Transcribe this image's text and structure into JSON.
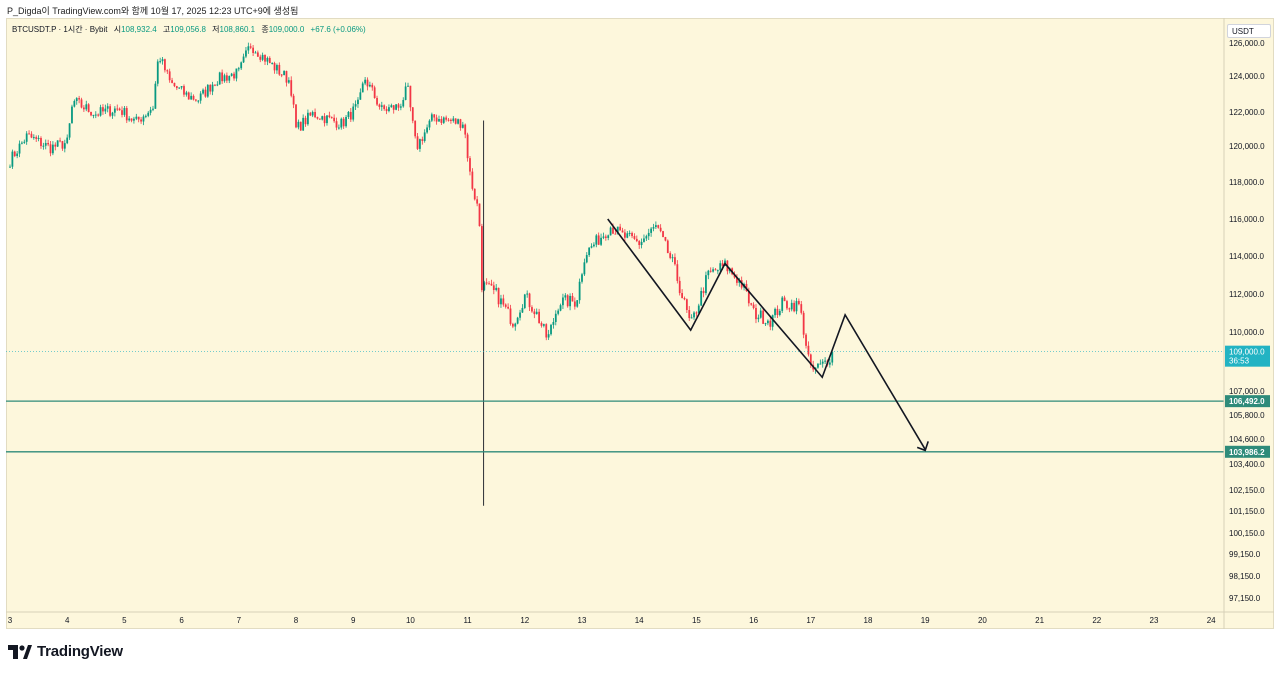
{
  "header": {
    "caption": "P_Digda이 TradingView.com와 함께 10월 17, 2025 12:23 UTC+9에 생성됨"
  },
  "legend": {
    "symbol": "BTCUSDT.P · 1시간 · Bybit",
    "o_label": "시",
    "o": "108,932.4",
    "h_label": "고",
    "h": "109,056.8",
    "l_label": "저",
    "l": "108,860.1",
    "c_label": "종",
    "c": "109,000.0",
    "change": "+67.6 (+0.06%)"
  },
  "brand": {
    "name": "TradingView"
  },
  "colors": {
    "up": "#089981",
    "down": "#f23645",
    "level": "#2e8b7a",
    "price_tag": "#22b3c3",
    "background": "#fdf7dc"
  },
  "chart_data": {
    "type": "candlestick",
    "unit": "USDT",
    "x_ticks": [
      "3",
      "4",
      "5",
      "6",
      "7",
      "8",
      "9",
      "10",
      "11",
      "12",
      "13",
      "14",
      "15",
      "16",
      "17",
      "18",
      "19",
      "20",
      "21",
      "22",
      "23",
      "24"
    ],
    "y_ticks": [
      "126,000.0",
      "124,000.0",
      "122,000.0",
      "120,000.0",
      "118,000.0",
      "116,000.0",
      "114,000.0",
      "112,000.0",
      "110,000.0",
      "107,000.0",
      "105,800.0",
      "104,600.0",
      "103,400.0",
      "102,150.0",
      "101,150.0",
      "100,150.0",
      "99,150.0",
      "98,150.0",
      "97,150.0"
    ],
    "current_price": {
      "value": "109,000.0",
      "countdown": "36:53"
    },
    "levels": [
      {
        "value": 106492.0,
        "label": "106,492.0"
      },
      {
        "value": 103986.2,
        "label": "103,986.2"
      }
    ],
    "path_points": [
      [
        13.45,
        116000
      ],
      [
        14.9,
        110100
      ],
      [
        15.5,
        113600
      ],
      [
        17.2,
        107700
      ],
      [
        17.6,
        110900
      ],
      [
        19.0,
        104100
      ]
    ],
    "ohlc_anchors": [
      [
        3.0,
        119200
      ],
      [
        3.3,
        120600
      ],
      [
        3.7,
        119900
      ],
      [
        4.0,
        120200
      ],
      [
        4.1,
        122600
      ],
      [
        4.5,
        121900
      ],
      [
        4.9,
        122200
      ],
      [
        5.2,
        121400
      ],
      [
        5.5,
        122300
      ],
      [
        5.6,
        125300
      ],
      [
        5.8,
        123600
      ],
      [
        6.1,
        122900
      ],
      [
        6.3,
        122700
      ],
      [
        6.6,
        123800
      ],
      [
        7.0,
        124200
      ],
      [
        7.2,
        125900
      ],
      [
        7.6,
        124600
      ],
      [
        7.9,
        123700
      ],
      [
        8.0,
        121000
      ],
      [
        8.3,
        121900
      ],
      [
        8.8,
        121300
      ],
      [
        9.1,
        122400
      ],
      [
        9.2,
        123900
      ],
      [
        9.5,
        122100
      ],
      [
        9.8,
        122300
      ],
      [
        9.95,
        123300
      ],
      [
        10.1,
        119900
      ],
      [
        10.4,
        121700
      ],
      [
        10.8,
        121400
      ],
      [
        10.93,
        121400
      ],
      [
        11.05,
        118200
      ],
      [
        11.2,
        116300
      ],
      [
        11.25,
        112500
      ],
      [
        11.5,
        112000
      ],
      [
        11.8,
        110500
      ],
      [
        12.0,
        111900
      ],
      [
        12.2,
        111000
      ],
      [
        12.4,
        109600
      ],
      [
        12.6,
        111600
      ],
      [
        12.9,
        111600
      ],
      [
        13.05,
        114100
      ],
      [
        13.5,
        115600
      ],
      [
        13.7,
        115100
      ],
      [
        14.0,
        114700
      ],
      [
        14.3,
        115600
      ],
      [
        14.6,
        113500
      ],
      [
        14.9,
        110300
      ],
      [
        15.2,
        113000
      ],
      [
        15.5,
        113500
      ],
      [
        15.8,
        112500
      ],
      [
        16.0,
        111000
      ],
      [
        16.3,
        110600
      ],
      [
        16.5,
        111500
      ],
      [
        16.8,
        111400
      ],
      [
        17.0,
        108000
      ],
      [
        17.2,
        108300
      ],
      [
        17.4,
        109000
      ]
    ]
  }
}
